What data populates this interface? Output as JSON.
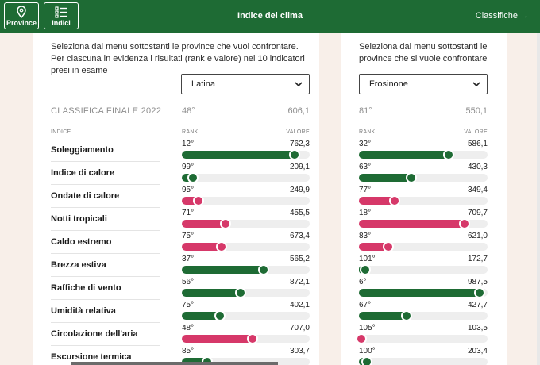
{
  "nav": {
    "province_label": "Province",
    "indici_label": "Indici",
    "title": "Indice del clima",
    "classifiche_label": "Classifiche"
  },
  "colors": {
    "green": "#1e6b34",
    "pink": "#d63869",
    "track": "#eeeeee"
  },
  "left": {
    "intro": "Seleziona dai menu sottostanti le province che vuoi confrontare. Per ciascuna in evidenza i risultati (rank e valore) nei 10 indicatori presi in esame",
    "selected": "Latina",
    "final_label": "CLASSIFICA FINALE 2022",
    "final_rank": "48°",
    "final_value": "606,1",
    "col_indice": "INDICE",
    "col_rank": "RANK",
    "col_valore": "VALORE"
  },
  "right": {
    "intro": "Seleziona dai menu sottostanti le province che si vuole confrontare",
    "selected": "Frosinone",
    "final_rank": "81°",
    "final_value": "550,1",
    "col_rank": "RANK",
    "col_valore": "VALORE"
  },
  "indicators": [
    {
      "name": "Soleggiamento",
      "a": {
        "rank": "12°",
        "value": "762,3",
        "fill": 0.88,
        "color": "green"
      },
      "b": {
        "rank": "32°",
        "value": "586,1",
        "fill": 0.7,
        "color": "green"
      }
    },
    {
      "name": "Indice di calore",
      "a": {
        "rank": "99°",
        "value": "209,1",
        "fill": 0.09,
        "color": "green"
      },
      "b": {
        "rank": "63°",
        "value": "430,3",
        "fill": 0.41,
        "color": "green"
      }
    },
    {
      "name": "Ondate di calore",
      "a": {
        "rank": "95°",
        "value": "249,9",
        "fill": 0.13,
        "color": "pink"
      },
      "b": {
        "rank": "77°",
        "value": "349,4",
        "fill": 0.28,
        "color": "pink"
      }
    },
    {
      "name": "Notti tropicali",
      "a": {
        "rank": "71°",
        "value": "455,5",
        "fill": 0.34,
        "color": "pink"
      },
      "b": {
        "rank": "18°",
        "value": "709,7",
        "fill": 0.82,
        "color": "pink"
      }
    },
    {
      "name": "Caldo estremo",
      "a": {
        "rank": "75°",
        "value": "673,4",
        "fill": 0.31,
        "color": "pink"
      },
      "b": {
        "rank": "83°",
        "value": "621,0",
        "fill": 0.23,
        "color": "pink"
      }
    },
    {
      "name": "Brezza estiva",
      "a": {
        "rank": "37°",
        "value": "565,2",
        "fill": 0.64,
        "color": "green"
      },
      "b": {
        "rank": "101°",
        "value": "172,7",
        "fill": 0.05,
        "color": "green"
      }
    },
    {
      "name": "Raffiche di vento",
      "a": {
        "rank": "56°",
        "value": "872,1",
        "fill": 0.46,
        "color": "green"
      },
      "b": {
        "rank": "6°",
        "value": "987,5",
        "fill": 0.94,
        "color": "green"
      }
    },
    {
      "name": "Umidità relativa",
      "a": {
        "rank": "75°",
        "value": "402,1",
        "fill": 0.3,
        "color": "green"
      },
      "b": {
        "rank": "67°",
        "value": "427,7",
        "fill": 0.37,
        "color": "green"
      }
    },
    {
      "name": "Circolazione dell'aria",
      "a": {
        "rank": "48°",
        "value": "707,0",
        "fill": 0.55,
        "color": "pink"
      },
      "b": {
        "rank": "105°",
        "value": "103,5",
        "fill": 0.02,
        "color": "pink"
      }
    },
    {
      "name": "Escursione termica",
      "a": {
        "rank": "85°",
        "value": "303,7",
        "fill": 0.2,
        "color": "green"
      },
      "b": {
        "rank": "100°",
        "value": "203,4",
        "fill": 0.06,
        "color": "green"
      }
    }
  ]
}
